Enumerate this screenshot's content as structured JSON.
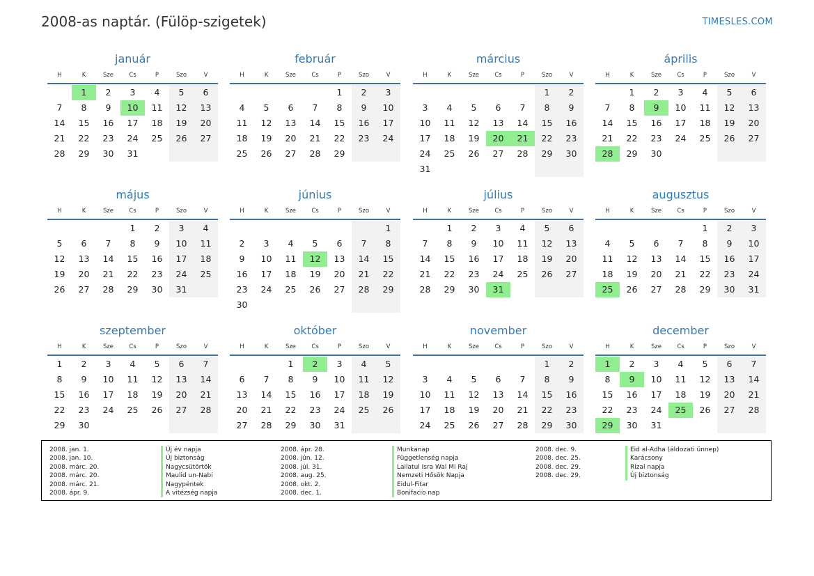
{
  "header": {
    "title": "2008-as naptár. (Fülöp-szigetek)",
    "brand": "TIMESLES.COM"
  },
  "weekdays": [
    "H",
    "K",
    "Sze",
    "Cs",
    "P",
    "Szo",
    "V"
  ],
  "colors": {
    "accent": "#2f7dc0",
    "holiday": "#90ee90",
    "weekend": "#f2f2f2",
    "rule": "#3f6ea8"
  },
  "months": [
    {
      "name": "január",
      "offset": 1,
      "days": 31,
      "holidays": [
        1,
        10
      ]
    },
    {
      "name": "február",
      "offset": 4,
      "days": 29,
      "holidays": []
    },
    {
      "name": "március",
      "offset": 5,
      "days": 31,
      "holidays": [
        20,
        21
      ]
    },
    {
      "name": "április",
      "offset": 1,
      "days": 30,
      "holidays": [
        9,
        28
      ]
    },
    {
      "name": "május",
      "offset": 3,
      "days": 31,
      "holidays": []
    },
    {
      "name": "június",
      "offset": 6,
      "days": 30,
      "holidays": [
        12
      ]
    },
    {
      "name": "július",
      "offset": 1,
      "days": 31,
      "holidays": [
        31
      ]
    },
    {
      "name": "augusztus",
      "offset": 4,
      "days": 31,
      "holidays": [
        25
      ]
    },
    {
      "name": "szeptember",
      "offset": 0,
      "days": 30,
      "holidays": []
    },
    {
      "name": "október",
      "offset": 2,
      "days": 31,
      "holidays": [
        2
      ]
    },
    {
      "name": "november",
      "offset": 5,
      "days": 30,
      "holidays": []
    },
    {
      "name": "december",
      "offset": 0,
      "days": 31,
      "holidays": [
        1,
        9,
        25,
        29
      ]
    }
  ],
  "legend": [
    {
      "date": "2008. jan. 1.",
      "name": "Új év napja"
    },
    {
      "date": "2008. jan. 10.",
      "name": "Új biztonság"
    },
    {
      "date": "2008. márc. 20.",
      "name": "Nagycsütörtök"
    },
    {
      "date": "2008. márc. 20.",
      "name": "Maulid un-Nabi"
    },
    {
      "date": "2008. márc. 21.",
      "name": "Nagypéntek"
    },
    {
      "date": "2008. ápr. 9.",
      "name": "A vitézség napja"
    },
    {
      "date": "2008. ápr. 28.",
      "name": "Munkanap"
    },
    {
      "date": "2008. jún. 12.",
      "name": "Függetlenség napja"
    },
    {
      "date": "2008. júl. 31.",
      "name": "Lailatul Isra Wal Mi Raj"
    },
    {
      "date": "2008. aug. 25.",
      "name": "Nemzeti Hősök Napja"
    },
    {
      "date": "2008. okt. 2.",
      "name": "Eidul-Fitar"
    },
    {
      "date": "2008. dec. 1.",
      "name": "Bonifacio nap"
    },
    {
      "date": "2008. dec. 9.",
      "name": "Eid al-Adha (áldozati ünnep)"
    },
    {
      "date": "2008. dec. 25.",
      "name": "Karácsony"
    },
    {
      "date": "2008. dec. 29.",
      "name": "Rizal napja"
    },
    {
      "date": "2008. dec. 29.",
      "name": "Új biztonság"
    }
  ]
}
